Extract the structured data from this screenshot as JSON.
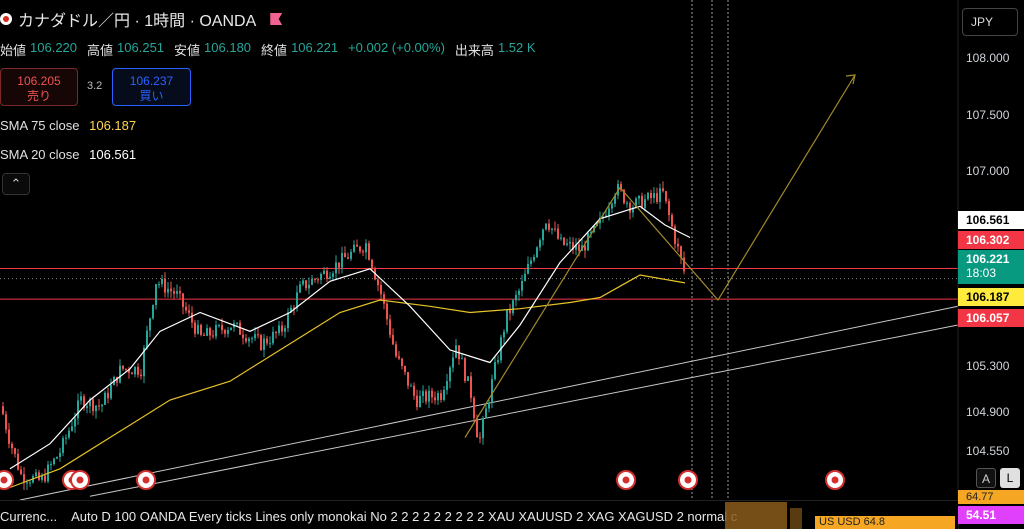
{
  "header": {
    "symbol_title": "カナダドル／円 · 1時間 · OANDA"
  },
  "ohlc": {
    "open_label": "始値",
    "open": "106.220",
    "high_label": "高値",
    "high": "106.251",
    "low_label": "安値",
    "low": "106.180",
    "close_label": "終値",
    "close": "106.221",
    "change": "+0.002 (+0.00%)",
    "volume_label": "出来高",
    "volume": "1.52 K"
  },
  "trade": {
    "sell_price": "106.205",
    "sell_label": "売り",
    "spread": "3.2",
    "buy_price": "106.237",
    "buy_label": "買い"
  },
  "indicators": [
    {
      "label": "SMA 75 close",
      "value": "106.187",
      "color": "#ffd54f"
    },
    {
      "label": "SMA 20 close",
      "value": "106.561",
      "color": "#ffffff"
    }
  ],
  "collapse_icon": "chevron-up-icon",
  "axis": {
    "currency": "JPY",
    "ticks": [
      "108.000",
      "107.500",
      "107.000",
      "105.300",
      "104.900",
      "104.550"
    ],
    "price_tags": {
      "sma20": "106.561",
      "upper_line": "106.302",
      "last": "106.221",
      "countdown": "18:03",
      "sma75": "106.187",
      "lower_line": "106.057"
    },
    "btn_a": "A",
    "btn_l": "L"
  },
  "bottom": {
    "item1": "Currenc...",
    "item2": "Auto D 100 OANDA Every ticks Lines only monokai No 2 2 2 2 2 2 2 2 2 XAU XAUUSD 2 XAG XAGUSD 2 normal c",
    "us_text": "US   USD    64.8",
    "mini1": "64.77",
    "mini2": "54.51"
  },
  "chart_data": {
    "type": "candlestick",
    "symbol": "CADJPY",
    "timeframe": "1h",
    "ylim": [
      104.45,
      108.45
    ],
    "y_ticks": [
      108.0,
      107.5,
      107.0,
      105.3,
      104.9,
      104.55
    ],
    "anchors": [
      {
        "x": 0,
        "p": 105.2
      },
      {
        "x": 8,
        "p": 104.95
      },
      {
        "x": 20,
        "p": 104.65
      },
      {
        "x": 40,
        "p": 104.6
      },
      {
        "x": 60,
        "p": 104.85
      },
      {
        "x": 80,
        "p": 105.25
      },
      {
        "x": 100,
        "p": 105.2
      },
      {
        "x": 120,
        "p": 105.5
      },
      {
        "x": 140,
        "p": 105.5
      },
      {
        "x": 155,
        "p": 106.2
      },
      {
        "x": 175,
        "p": 106.1
      },
      {
        "x": 200,
        "p": 105.75
      },
      {
        "x": 230,
        "p": 105.85
      },
      {
        "x": 260,
        "p": 105.7
      },
      {
        "x": 280,
        "p": 105.8
      },
      {
        "x": 300,
        "p": 106.15
      },
      {
        "x": 330,
        "p": 106.3
      },
      {
        "x": 355,
        "p": 106.45
      },
      {
        "x": 365,
        "p": 106.5
      },
      {
        "x": 380,
        "p": 106.1
      },
      {
        "x": 395,
        "p": 105.6
      },
      {
        "x": 415,
        "p": 105.25
      },
      {
        "x": 440,
        "p": 105.3
      },
      {
        "x": 455,
        "p": 105.7
      },
      {
        "x": 470,
        "p": 105.3
      },
      {
        "x": 478,
        "p": 104.9
      },
      {
        "x": 490,
        "p": 105.35
      },
      {
        "x": 505,
        "p": 105.9
      },
      {
        "x": 520,
        "p": 106.15
      },
      {
        "x": 545,
        "p": 106.7
      },
      {
        "x": 560,
        "p": 106.5
      },
      {
        "x": 580,
        "p": 106.45
      },
      {
        "x": 598,
        "p": 106.65
      },
      {
        "x": 615,
        "p": 106.95
      },
      {
        "x": 630,
        "p": 106.8
      },
      {
        "x": 645,
        "p": 106.85
      },
      {
        "x": 662,
        "p": 106.9
      },
      {
        "x": 672,
        "p": 106.6
      },
      {
        "x": 685,
        "p": 106.221
      }
    ],
    "sma75": [
      {
        "x": 10,
        "p": 104.55
      },
      {
        "x": 60,
        "p": 104.7
      },
      {
        "x": 120,
        "p": 105.0
      },
      {
        "x": 170,
        "p": 105.25
      },
      {
        "x": 230,
        "p": 105.4
      },
      {
        "x": 300,
        "p": 105.75
      },
      {
        "x": 340,
        "p": 105.95
      },
      {
        "x": 380,
        "p": 106.05
      },
      {
        "x": 430,
        "p": 106.0
      },
      {
        "x": 470,
        "p": 105.95
      },
      {
        "x": 520,
        "p": 105.98
      },
      {
        "x": 570,
        "p": 106.03
      },
      {
        "x": 600,
        "p": 106.07
      },
      {
        "x": 640,
        "p": 106.25
      },
      {
        "x": 685,
        "p": 106.187
      }
    ],
    "sma20": [
      {
        "x": 10,
        "p": 104.7
      },
      {
        "x": 50,
        "p": 104.9
      },
      {
        "x": 90,
        "p": 105.25
      },
      {
        "x": 130,
        "p": 105.5
      },
      {
        "x": 160,
        "p": 105.8
      },
      {
        "x": 200,
        "p": 105.95
      },
      {
        "x": 250,
        "p": 105.8
      },
      {
        "x": 290,
        "p": 105.95
      },
      {
        "x": 330,
        "p": 106.2
      },
      {
        "x": 370,
        "p": 106.3
      },
      {
        "x": 410,
        "p": 106.0
      },
      {
        "x": 450,
        "p": 105.65
      },
      {
        "x": 490,
        "p": 105.55
      },
      {
        "x": 520,
        "p": 105.85
      },
      {
        "x": 560,
        "p": 106.35
      },
      {
        "x": 600,
        "p": 106.7
      },
      {
        "x": 640,
        "p": 106.8
      },
      {
        "x": 665,
        "p": 106.65
      },
      {
        "x": 690,
        "p": 106.55
      }
    ],
    "horizontal_lines": [
      106.302,
      106.057
    ],
    "trendlines": [
      {
        "x1": 20,
        "p1": 104.45,
        "x2": 958,
        "p2": 106.0
      },
      {
        "x1": 90,
        "p1": 104.48,
        "x2": 958,
        "p2": 105.85
      }
    ],
    "pattern_line": [
      {
        "x": 465,
        "p": 104.95
      },
      {
        "x": 620,
        "p": 106.95
      },
      {
        "x": 718,
        "p": 106.05
      },
      {
        "x": 855,
        "p": 107.85
      }
    ],
    "vertical_lines_x": [
      692,
      712,
      728
    ],
    "event_markers": [
      {
        "x": 4,
        "kind": "ca"
      },
      {
        "x": 72,
        "kind": "ca"
      },
      {
        "x": 80,
        "kind": "ca"
      },
      {
        "x": 146,
        "kind": "ca"
      },
      {
        "x": 626,
        "kind": "us"
      },
      {
        "x": 688,
        "kind": "us"
      },
      {
        "x": 835,
        "kind": "us"
      }
    ],
    "colors": {
      "up": "#26a69a",
      "down": "#ef5350",
      "sma75": "#e6c229",
      "sma20": "#ffffff",
      "hline": "#f23645",
      "trend": "#c8c8c8",
      "pattern": "#a08a2a"
    }
  }
}
